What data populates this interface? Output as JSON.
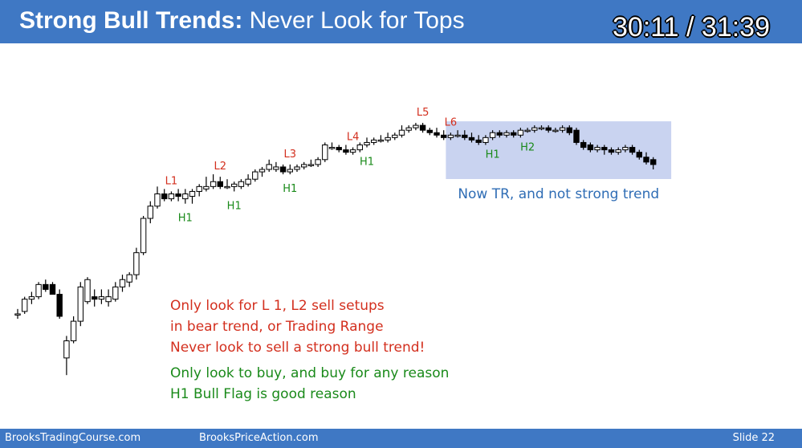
{
  "header": {
    "title_bold": "Strong Bull Trends:",
    "title_rest": " Never Look for Tops",
    "timer": "30:11 / 31:39"
  },
  "notes": {
    "red_lines": [
      "Only look for L 1, L2 sell setups",
      "in bear trend, or Trading Range",
      "Never look to sell a strong bull trend!"
    ],
    "green_lines": [
      "Only look to buy, and buy for any reason",
      "H1 Bull Flag is good reason"
    ]
  },
  "footer": {
    "left": "BrooksTradingCourse.com",
    "middle": "BrooksPriceAction.com",
    "right": "Slide  22"
  },
  "colors": {
    "header_bg": "#3f78c4",
    "red_label": "#d32f1e",
    "green_label": "#1a8a1a",
    "range_box": "#c9d3f0",
    "range_text": "#2f6db5"
  },
  "chart_data": {
    "type": "candlestick",
    "axes_visible": false,
    "candles": [
      {
        "o": 21,
        "h": 23,
        "l": 19,
        "c": 21
      },
      {
        "o": 22,
        "h": 28,
        "l": 21,
        "c": 27
      },
      {
        "o": 27,
        "h": 30,
        "l": 25,
        "c": 28
      },
      {
        "o": 28,
        "h": 34,
        "l": 27,
        "c": 33
      },
      {
        "o": 33,
        "h": 35,
        "l": 30,
        "c": 31
      },
      {
        "o": 33,
        "h": 34,
        "l": 29,
        "c": 29
      },
      {
        "o": 29,
        "h": 31,
        "l": 19,
        "c": 20
      },
      {
        "o": 3,
        "h": 12,
        "l": -4,
        "c": 10
      },
      {
        "o": 10,
        "h": 20,
        "l": 9,
        "c": 18
      },
      {
        "o": 18,
        "h": 34,
        "l": 16,
        "c": 32
      },
      {
        "o": 26,
        "h": 36,
        "l": 25,
        "c": 35
      },
      {
        "o": 28,
        "h": 31,
        "l": 24,
        "c": 27
      },
      {
        "o": 27,
        "h": 31,
        "l": 25,
        "c": 28
      },
      {
        "o": 26,
        "h": 31,
        "l": 24,
        "c": 28
      },
      {
        "o": 27,
        "h": 34,
        "l": 26,
        "c": 32
      },
      {
        "o": 32,
        "h": 37,
        "l": 30,
        "c": 35
      },
      {
        "o": 34,
        "h": 38,
        "l": 32,
        "c": 37
      },
      {
        "o": 37,
        "h": 48,
        "l": 35,
        "c": 46
      },
      {
        "o": 46,
        "h": 61,
        "l": 45,
        "c": 60
      },
      {
        "o": 60,
        "h": 67,
        "l": 58,
        "c": 65
      },
      {
        "o": 65,
        "h": 73,
        "l": 64,
        "c": 70
      },
      {
        "o": 70,
        "h": 72,
        "l": 67,
        "c": 68
      },
      {
        "o": 68,
        "h": 71,
        "l": 67,
        "c": 70
      },
      {
        "o": 70,
        "h": 72,
        "l": 67,
        "c": 69
      },
      {
        "o": 68,
        "h": 72,
        "l": 66,
        "c": 70
      },
      {
        "o": 69,
        "h": 72,
        "l": 66,
        "c": 71
      },
      {
        "o": 71,
        "h": 74,
        "l": 69,
        "c": 73
      },
      {
        "o": 72,
        "h": 77,
        "l": 71,
        "c": 73
      },
      {
        "o": 73,
        "h": 78,
        "l": 72,
        "c": 75
      },
      {
        "o": 75,
        "h": 77,
        "l": 72,
        "c": 73
      },
      {
        "o": 73,
        "h": 76,
        "l": 72,
        "c": 73
      },
      {
        "o": 73,
        "h": 75,
        "l": 71,
        "c": 74
      },
      {
        "o": 73,
        "h": 76,
        "l": 72,
        "c": 75
      },
      {
        "o": 74,
        "h": 78,
        "l": 73,
        "c": 76
      },
      {
        "o": 76,
        "h": 80,
        "l": 75,
        "c": 79
      },
      {
        "o": 79,
        "h": 81,
        "l": 77,
        "c": 80
      },
      {
        "o": 80,
        "h": 84,
        "l": 79,
        "c": 82
      },
      {
        "o": 80,
        "h": 83,
        "l": 79,
        "c": 81
      },
      {
        "o": 81,
        "h": 82,
        "l": 78,
        "c": 79
      },
      {
        "o": 79,
        "h": 82,
        "l": 78,
        "c": 80
      },
      {
        "o": 80,
        "h": 82,
        "l": 79,
        "c": 81
      },
      {
        "o": 81,
        "h": 83,
        "l": 80,
        "c": 82
      },
      {
        "o": 82,
        "h": 84,
        "l": 81,
        "c": 82
      },
      {
        "o": 82,
        "h": 85,
        "l": 81,
        "c": 84
      },
      {
        "o": 84,
        "h": 91,
        "l": 83,
        "c": 90
      },
      {
        "o": 89,
        "h": 91,
        "l": 88,
        "c": 89
      },
      {
        "o": 89,
        "h": 90,
        "l": 87,
        "c": 88
      },
      {
        "o": 88,
        "h": 90,
        "l": 86,
        "c": 87
      },
      {
        "o": 87,
        "h": 89,
        "l": 86,
        "c": 88
      },
      {
        "o": 88,
        "h": 91,
        "l": 87,
        "c": 90
      },
      {
        "o": 90,
        "h": 93,
        "l": 89,
        "c": 91
      },
      {
        "o": 91,
        "h": 93,
        "l": 90,
        "c": 92
      },
      {
        "o": 92,
        "h": 94,
        "l": 91,
        "c": 92
      },
      {
        "o": 92,
        "h": 95,
        "l": 91,
        "c": 93
      },
      {
        "o": 93,
        "h": 95,
        "l": 92,
        "c": 94
      },
      {
        "o": 94,
        "h": 98,
        "l": 93,
        "c": 96
      },
      {
        "o": 96,
        "h": 98,
        "l": 95,
        "c": 97
      },
      {
        "o": 97,
        "h": 99,
        "l": 96,
        "c": 98
      },
      {
        "o": 98,
        "h": 99,
        "l": 95,
        "c": 96
      },
      {
        "o": 96,
        "h": 97,
        "l": 94,
        "c": 95
      },
      {
        "o": 95,
        "h": 97,
        "l": 93,
        "c": 94
      },
      {
        "o": 94,
        "h": 96,
        "l": 92,
        "c": 93
      },
      {
        "o": 93,
        "h": 95,
        "l": 92,
        "c": 94
      },
      {
        "o": 94,
        "h": 96,
        "l": 93,
        "c": 94
      },
      {
        "o": 94,
        "h": 96,
        "l": 92,
        "c": 93
      },
      {
        "o": 93,
        "h": 95,
        "l": 91,
        "c": 92
      },
      {
        "o": 92,
        "h": 94,
        "l": 90,
        "c": 91
      },
      {
        "o": 91,
        "h": 94,
        "l": 90,
        "c": 93
      },
      {
        "o": 93,
        "h": 96,
        "l": 92,
        "c": 95
      },
      {
        "o": 95,
        "h": 96,
        "l": 93,
        "c": 94
      },
      {
        "o": 94,
        "h": 96,
        "l": 93,
        "c": 95
      },
      {
        "o": 95,
        "h": 96,
        "l": 93,
        "c": 94
      },
      {
        "o": 94,
        "h": 97,
        "l": 93,
        "c": 96
      },
      {
        "o": 96,
        "h": 97,
        "l": 95,
        "c": 96
      },
      {
        "o": 96,
        "h": 98,
        "l": 95,
        "c": 97
      },
      {
        "o": 97,
        "h": 98,
        "l": 96,
        "c": 97
      },
      {
        "o": 97,
        "h": 98,
        "l": 95,
        "c": 96
      },
      {
        "o": 96,
        "h": 97,
        "l": 95,
        "c": 96
      },
      {
        "o": 96,
        "h": 98,
        "l": 95,
        "c": 97
      },
      {
        "o": 97,
        "h": 98,
        "l": 94,
        "c": 95
      },
      {
        "o": 96,
        "h": 97,
        "l": 90,
        "c": 91
      },
      {
        "o": 91,
        "h": 92,
        "l": 88,
        "c": 89
      },
      {
        "o": 90,
        "h": 91,
        "l": 87,
        "c": 88
      },
      {
        "o": 88,
        "h": 90,
        "l": 87,
        "c": 89
      },
      {
        "o": 89,
        "h": 90,
        "l": 86,
        "c": 88
      },
      {
        "o": 88,
        "h": 89,
        "l": 86,
        "c": 87
      },
      {
        "o": 87,
        "h": 89,
        "l": 86,
        "c": 88
      },
      {
        "o": 88,
        "h": 90,
        "l": 87,
        "c": 89
      },
      {
        "o": 89,
        "h": 90,
        "l": 86,
        "c": 87
      },
      {
        "o": 87,
        "h": 88,
        "l": 84,
        "c": 85
      },
      {
        "o": 85,
        "h": 87,
        "l": 82,
        "c": 83
      },
      {
        "o": 84,
        "h": 85,
        "l": 80,
        "c": 82
      }
    ],
    "signal_labels": [
      {
        "text": "L1",
        "bar": 22,
        "kind": "sell"
      },
      {
        "text": "L2",
        "bar": 29,
        "kind": "sell"
      },
      {
        "text": "L3",
        "bar": 39,
        "kind": "sell"
      },
      {
        "text": "L4",
        "bar": 48,
        "kind": "sell"
      },
      {
        "text": "L5",
        "bar": 58,
        "kind": "sell"
      },
      {
        "text": "L6",
        "bar": 62,
        "kind": "sell"
      },
      {
        "text": "H1",
        "bar": 24,
        "kind": "buy"
      },
      {
        "text": "H1",
        "bar": 31,
        "kind": "buy"
      },
      {
        "text": "H1",
        "bar": 39,
        "kind": "buy"
      },
      {
        "text": "H1",
        "bar": 50,
        "kind": "buy"
      },
      {
        "text": "H1",
        "bar": 68,
        "kind": "buy"
      },
      {
        "text": "H2",
        "bar": 73,
        "kind": "buy"
      }
    ],
    "range_box": {
      "start_bar": 62,
      "end_bar": 93,
      "label": "Now TR, and not strong trend"
    }
  }
}
